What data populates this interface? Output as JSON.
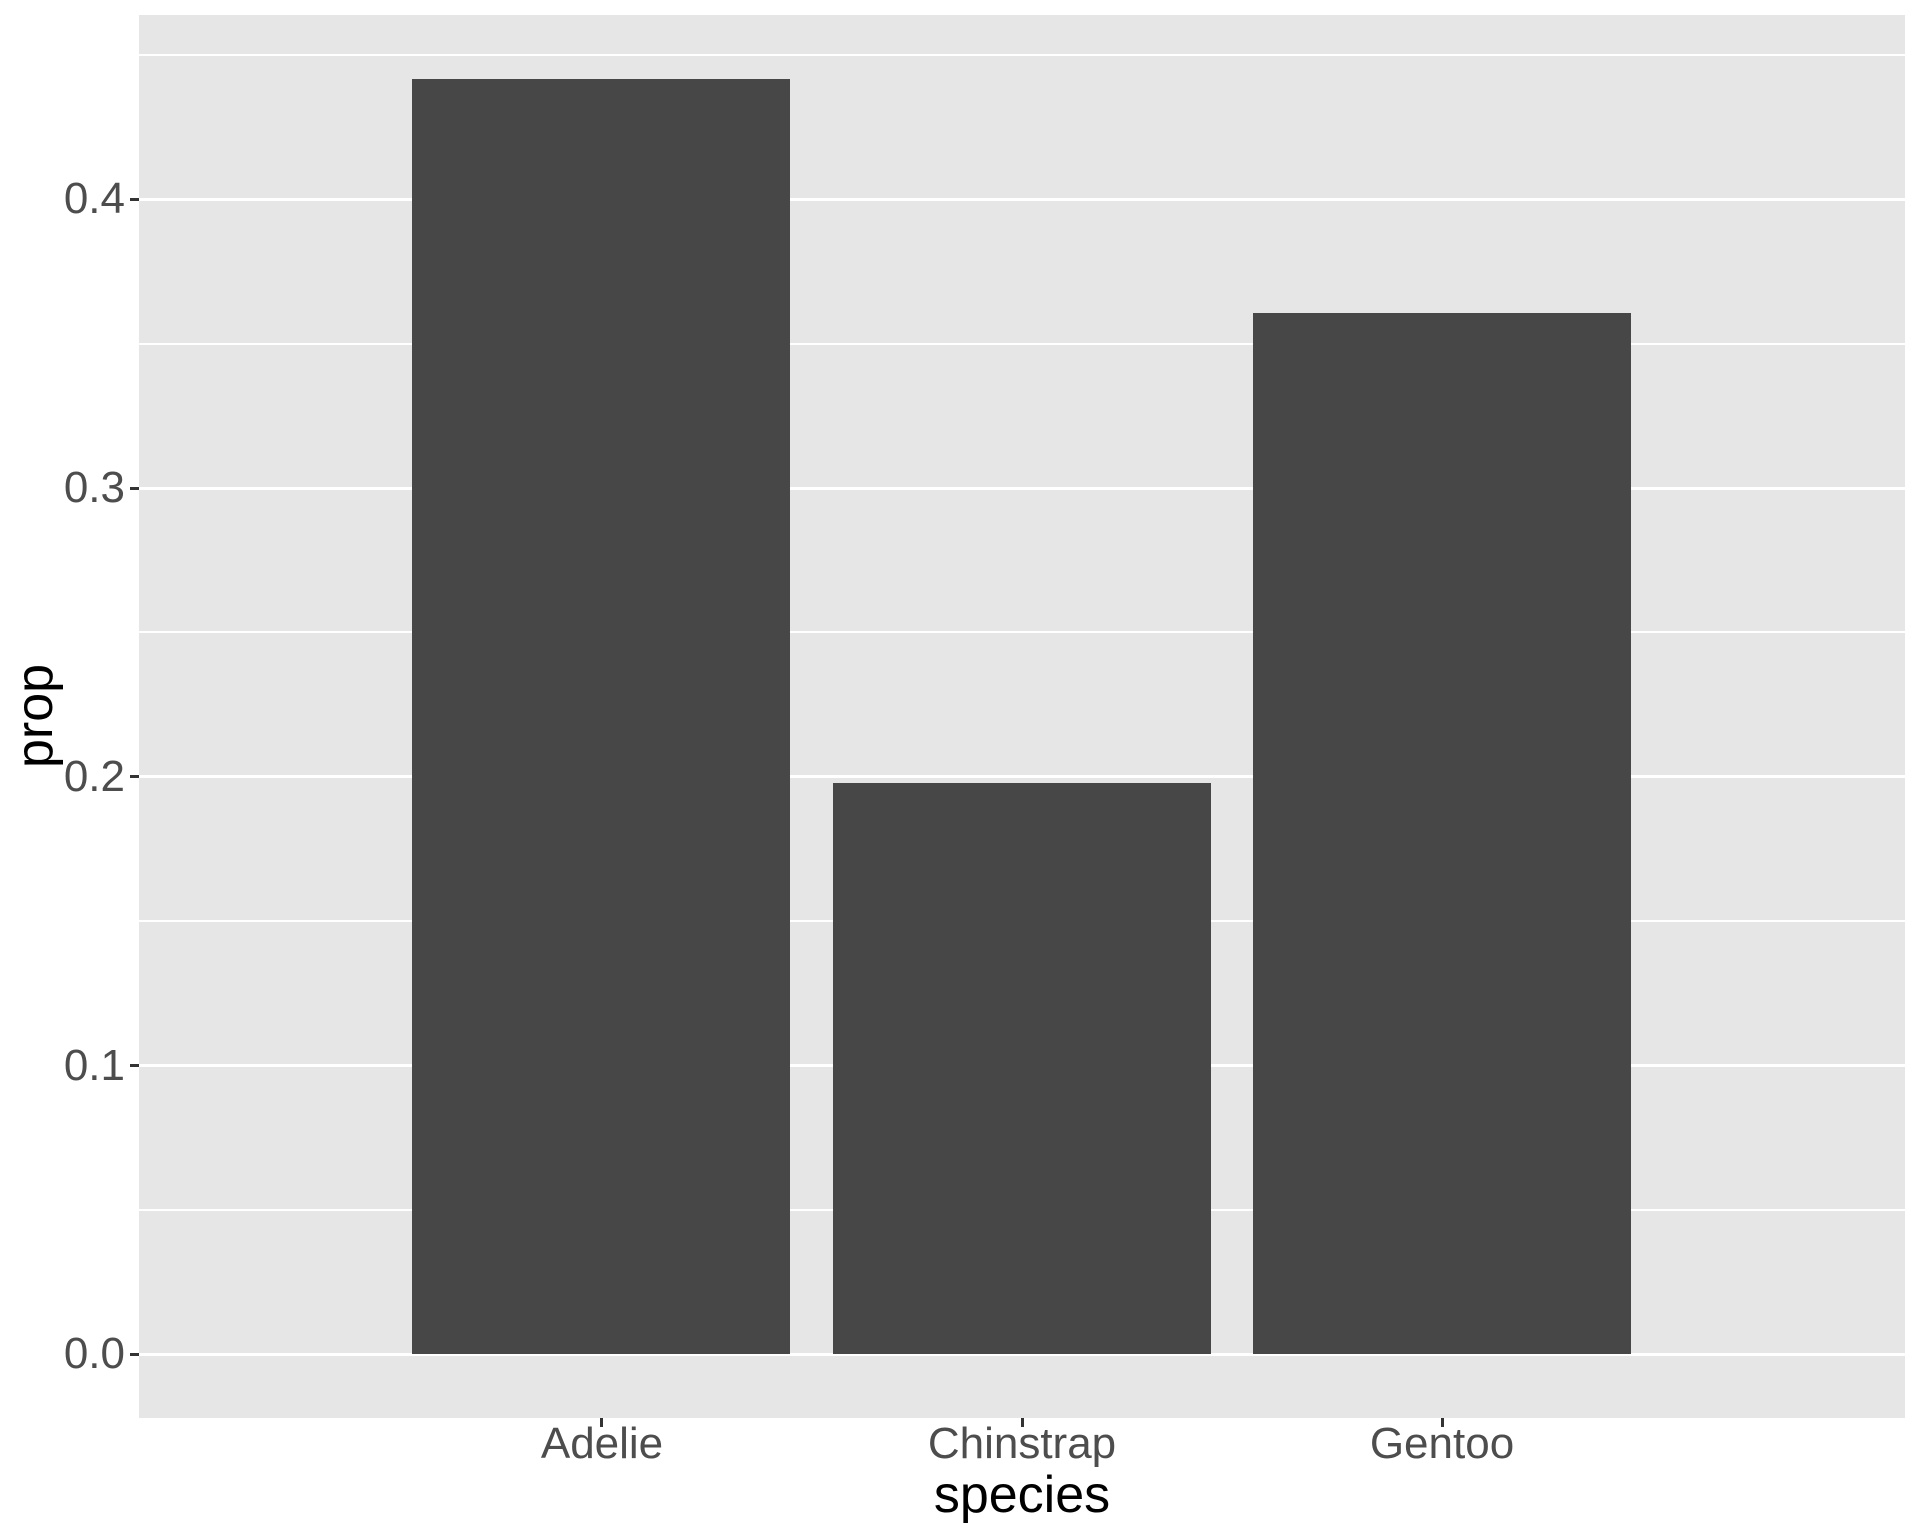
{
  "chart_data": {
    "type": "bar",
    "title": "",
    "xlabel": "species",
    "ylabel": "prop",
    "categories": [
      "Adelie",
      "Chinstrap",
      "Gentoo"
    ],
    "values": [
      0.4418,
      0.1977,
      0.3605
    ],
    "ylim": [
      -0.0221,
      0.4639
    ],
    "y_major_ticks": [
      0.0,
      0.1,
      0.2,
      0.3,
      0.4
    ],
    "y_tick_labels": [
      "0.0",
      "0.1",
      "0.2",
      "0.3",
      "0.4"
    ],
    "y_minor_ticks": [
      0.05,
      0.15,
      0.25,
      0.35,
      0.45
    ],
    "x_axis_expansion_units": 0.6,
    "bar_width_fraction": 0.9,
    "grid": "major-and-minor",
    "legend_position": "none",
    "theme": {
      "figure_background": "#FFFFFF",
      "panel_background": "#E6E6E6",
      "grid_color": "#FFFFFF",
      "bar_fill": "#474747",
      "tick_label_color": "#4D4D4D",
      "tick_mark_color": "#333333",
      "axis_title_color": "#000000"
    }
  }
}
